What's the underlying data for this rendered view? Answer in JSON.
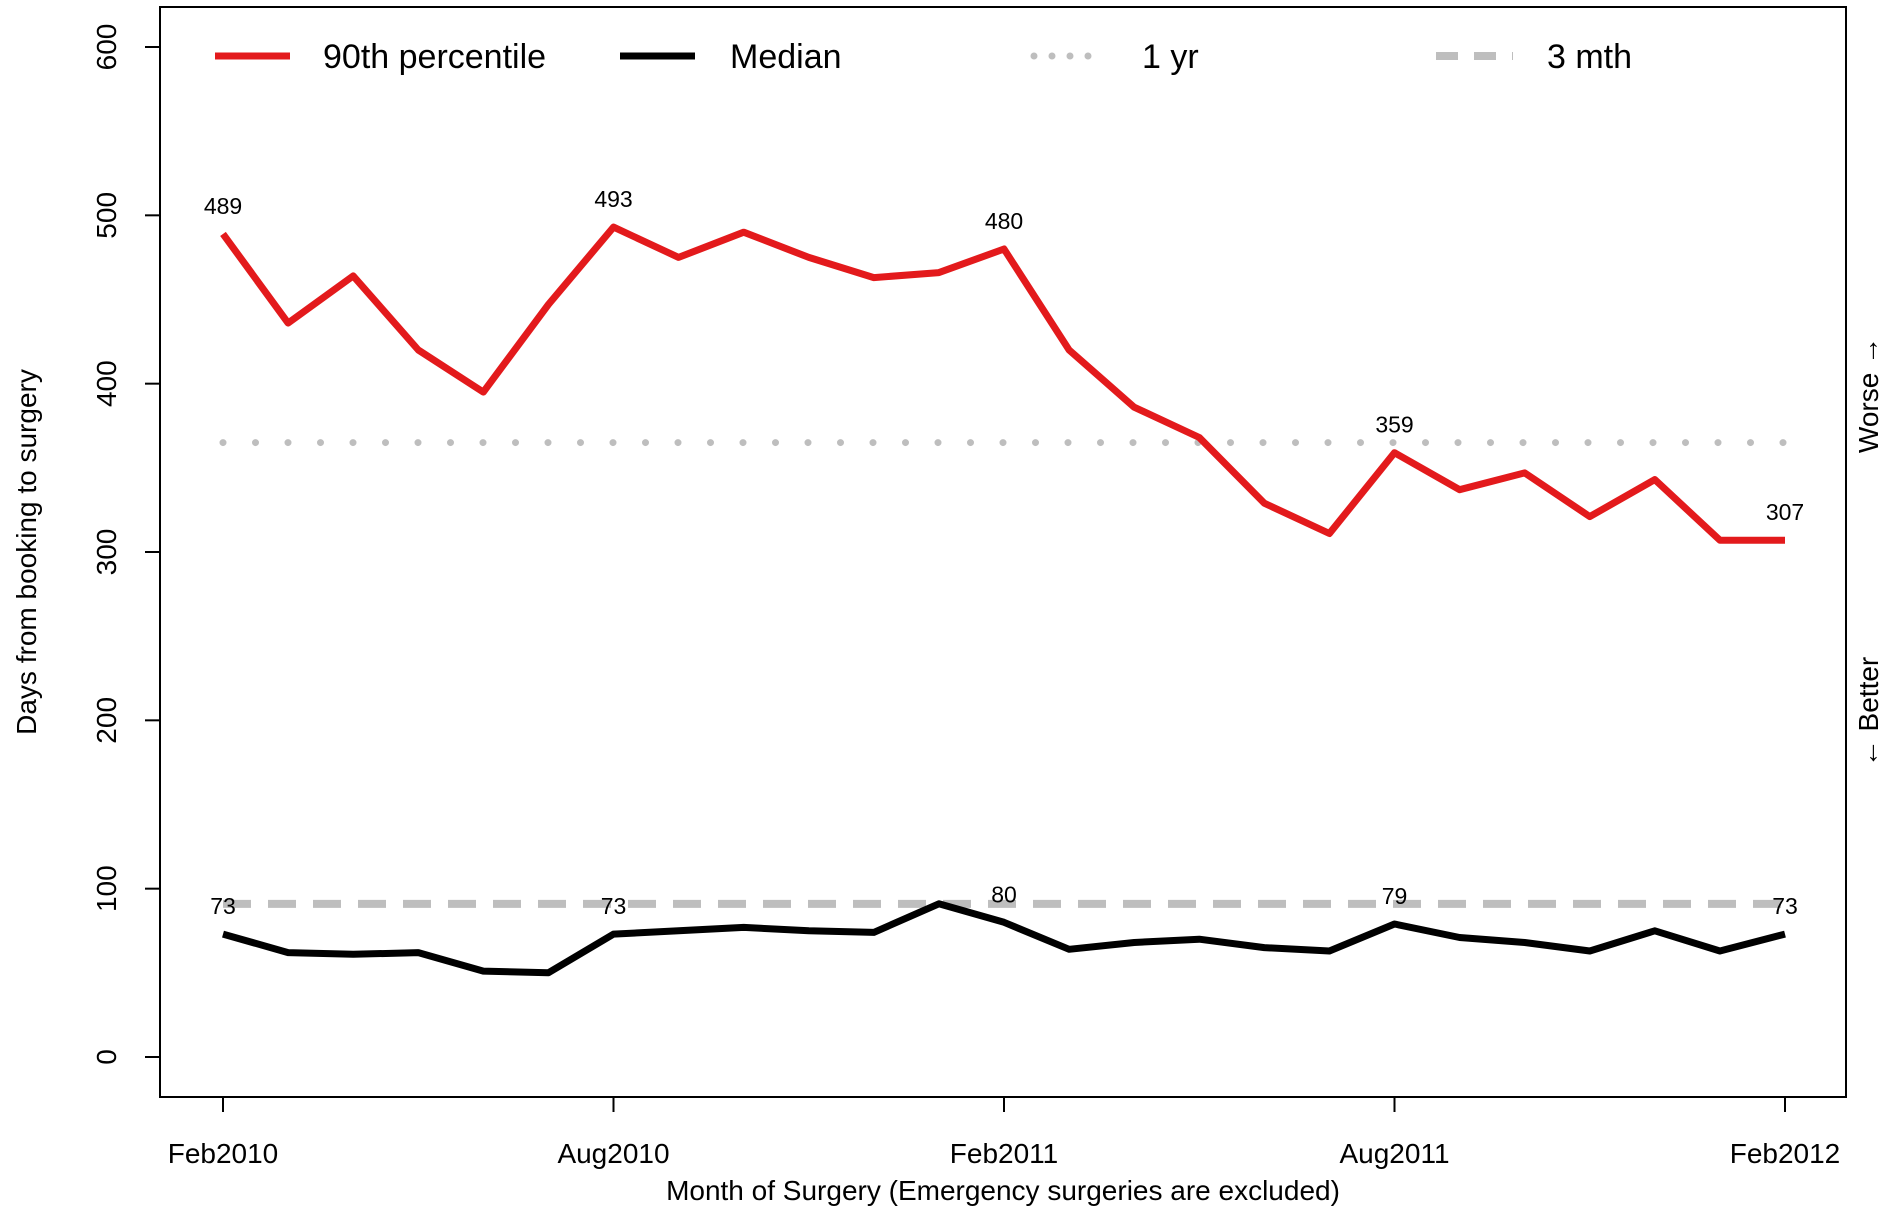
{
  "chart_data": {
    "type": "line",
    "title": "",
    "xlabel": "Month of Surgery (Emergency surgeries are excluded)",
    "ylabel": "Days from booking to surgery",
    "right_label_top": "Worse →",
    "right_label_bottom": "← Better",
    "ylim": [
      0,
      600
    ],
    "y_ticks": [
      0,
      100,
      200,
      300,
      400,
      500,
      600
    ],
    "x_ticks": [
      {
        "index": 0,
        "label": "Feb2010"
      },
      {
        "index": 6,
        "label": "Aug2010"
      },
      {
        "index": 12,
        "label": "Feb2011"
      },
      {
        "index": 18,
        "label": "Aug2011"
      },
      {
        "index": 24,
        "label": "Feb2012"
      }
    ],
    "categories": [
      "Feb2010",
      "Mar2010",
      "Apr2010",
      "May2010",
      "Jun2010",
      "Jul2010",
      "Aug2010",
      "Sep2010",
      "Oct2010",
      "Nov2010",
      "Dec2010",
      "Jan2011",
      "Feb2011",
      "Mar2011",
      "Apr2011",
      "May2011",
      "Jun2011",
      "Jul2011",
      "Aug2011",
      "Sep2011",
      "Oct2011",
      "Nov2011",
      "Dec2011",
      "Jan2012",
      "Feb2012"
    ],
    "grid": false,
    "legend_position": "top",
    "series": [
      {
        "name": "90th percentile",
        "color": "#e31a1c",
        "style": "solid",
        "values": [
          489,
          436,
          464,
          420,
          395,
          447,
          493,
          475,
          490,
          475,
          463,
          466,
          480,
          420,
          386,
          368,
          329,
          311,
          359,
          337,
          347,
          321,
          343,
          307,
          307
        ],
        "labels": [
          {
            "index": 0,
            "text": "489"
          },
          {
            "index": 6,
            "text": "493"
          },
          {
            "index": 12,
            "text": "480"
          },
          {
            "index": 18,
            "text": "359"
          },
          {
            "index": 24,
            "text": "307"
          }
        ]
      },
      {
        "name": "Median",
        "color": "#000000",
        "style": "solid",
        "values": [
          73,
          62,
          61,
          62,
          51,
          50,
          73,
          75,
          77,
          75,
          74,
          91,
          80,
          64,
          68,
          70,
          65,
          63,
          79,
          71,
          68,
          63,
          75,
          63,
          73
        ],
        "labels": [
          {
            "index": 0,
            "text": "73"
          },
          {
            "index": 6,
            "text": "73"
          },
          {
            "index": 12,
            "text": "80"
          },
          {
            "index": 18,
            "text": "79"
          },
          {
            "index": 24,
            "text": "73"
          }
        ]
      }
    ],
    "reference_lines": [
      {
        "name": "1 yr",
        "value": 365,
        "color": "#bebebe",
        "style": "dotted"
      },
      {
        "name": "3 mth",
        "value": 91,
        "color": "#bebebe",
        "style": "dashed"
      }
    ]
  }
}
